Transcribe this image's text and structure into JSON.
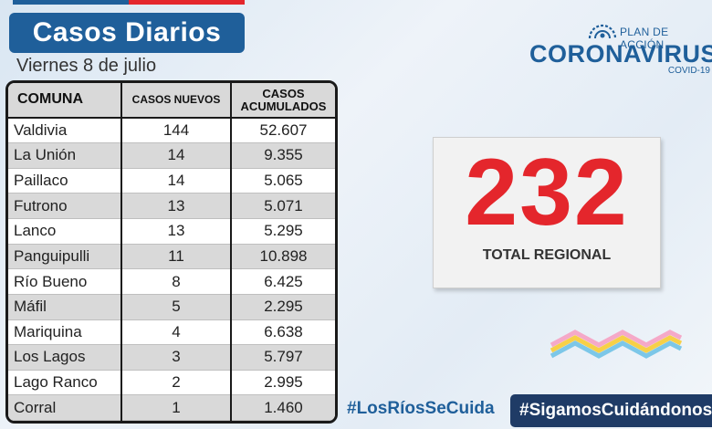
{
  "header": {
    "title": "Casos Diarios",
    "date": "Viernes 8 de julio"
  },
  "logo": {
    "plan": "PLAN DE ACCIÓN",
    "main": "CORONAVIRUS",
    "sub": "COVID-19"
  },
  "table": {
    "col_comuna": "COMUNA",
    "col_nuevos": "CASOS NUEVOS",
    "col_acumulados_line1": "CASOS",
    "col_acumulados_line2": "ACUMULADOS",
    "rows": [
      {
        "comuna": "Valdivia",
        "nuevos": "144",
        "acumulados": "52.607"
      },
      {
        "comuna": "La Unión",
        "nuevos": "14",
        "acumulados": "9.355"
      },
      {
        "comuna": "Paillaco",
        "nuevos": "14",
        "acumulados": "5.065"
      },
      {
        "comuna": "Futrono",
        "nuevos": "13",
        "acumulados": "5.071"
      },
      {
        "comuna": "Lanco",
        "nuevos": "13",
        "acumulados": "5.295"
      },
      {
        "comuna": "Panguipulli",
        "nuevos": "11",
        "acumulados": "10.898"
      },
      {
        "comuna": "Río Bueno",
        "nuevos": "8",
        "acumulados": "6.425"
      },
      {
        "comuna": "Máfil",
        "nuevos": "5",
        "acumulados": "2.295"
      },
      {
        "comuna": "Mariquina",
        "nuevos": "4",
        "acumulados": "6.638"
      },
      {
        "comuna": "Los Lagos",
        "nuevos": "3",
        "acumulados": "5.797"
      },
      {
        "comuna": "Lago Ranco",
        "nuevos": "2",
        "acumulados": "2.995"
      },
      {
        "comuna": "Corral",
        "nuevos": "1",
        "acumulados": "1.460"
      }
    ]
  },
  "total": {
    "value": "232",
    "label": "TOTAL REGIONAL"
  },
  "hashtags": {
    "primary": "#LosRíosSeCuida",
    "secondary": "#SigamosCuidándonos"
  },
  "colors": {
    "brand_blue": "#1f5f9a",
    "accent_red": "#e4262c",
    "dark_navy": "#1f3b66"
  }
}
